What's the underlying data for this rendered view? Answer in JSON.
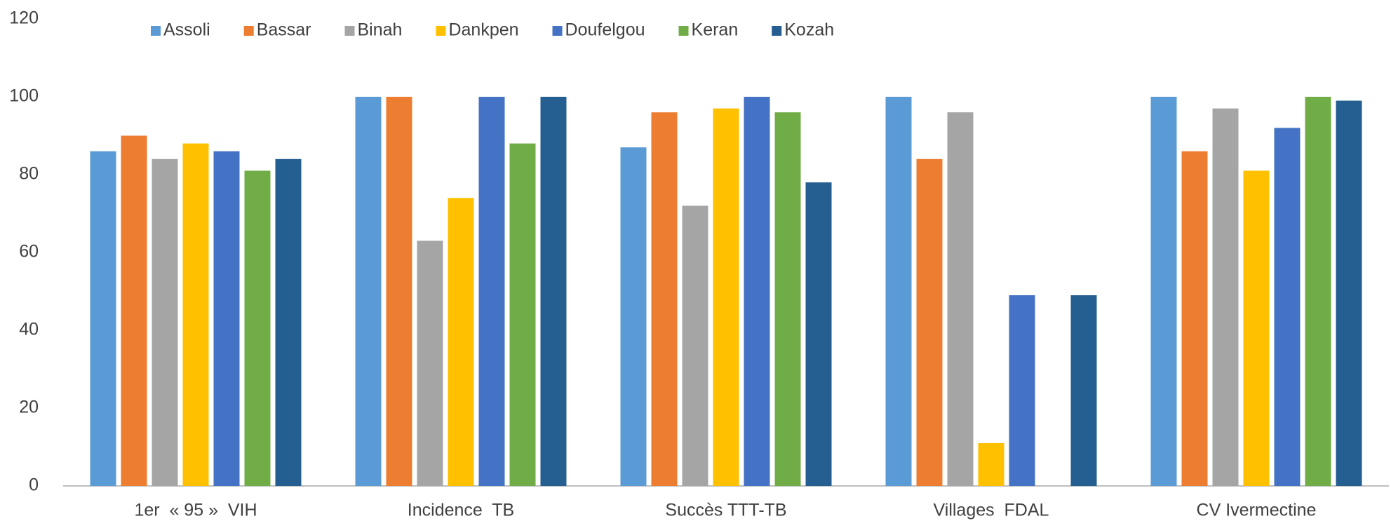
{
  "chart_data": {
    "type": "bar",
    "categories": [
      "1er  « 95 »  VIH",
      "Incidence  TB",
      "Succès TTT-TB",
      "Villages  FDAL",
      "CV Ivermectine"
    ],
    "series": [
      {
        "name": "Assoli",
        "color": "#5b9bd5",
        "values": [
          86,
          100,
          87,
          100,
          100
        ]
      },
      {
        "name": "Bassar",
        "color": "#ed7d31",
        "values": [
          90,
          100,
          96,
          84,
          86
        ]
      },
      {
        "name": "Binah",
        "color": "#a5a5a5",
        "values": [
          84,
          63,
          72,
          96,
          97
        ]
      },
      {
        "name": "Dankpen",
        "color": "#ffc000",
        "values": [
          88,
          74,
          97,
          11,
          81
        ]
      },
      {
        "name": "Doufelgou",
        "color": "#4472c4",
        "values": [
          86,
          100,
          100,
          49,
          92
        ]
      },
      {
        "name": "Keran",
        "color": "#70ad47",
        "values": [
          81,
          88,
          96,
          null,
          100
        ]
      },
      {
        "name": "Kozah",
        "color": "#255e91",
        "values": [
          84,
          100,
          78,
          49,
          99
        ]
      }
    ],
    "ylim": [
      0,
      120
    ],
    "yticks": [
      0,
      20,
      40,
      60,
      80,
      100,
      120
    ],
    "grid": false,
    "legend": "top"
  }
}
